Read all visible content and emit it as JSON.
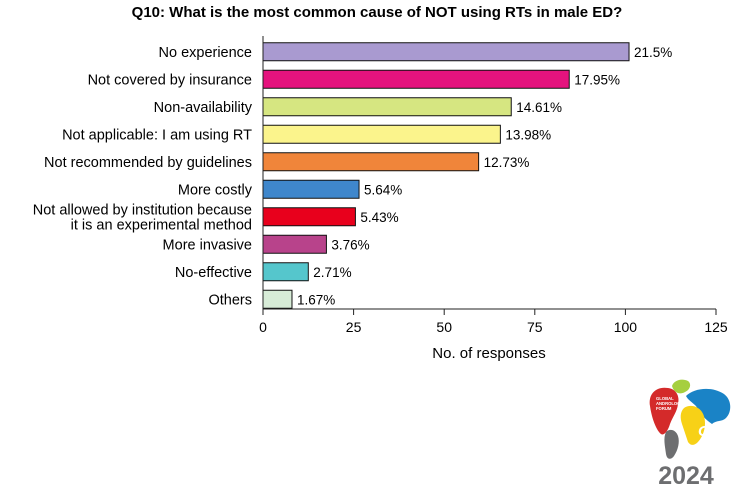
{
  "chart_data": {
    "type": "bar",
    "orientation": "horizontal",
    "title": "Q10: What is the most common cause of NOT using RTs in male ED?",
    "xlabel": "No. of responses",
    "ylabel": "",
    "xlim": [
      0,
      125
    ],
    "xticks": [
      "0",
      "25",
      "50",
      "75",
      "100",
      "125"
    ],
    "grid": false,
    "categories": [
      [
        "No experience"
      ],
      [
        "Not covered by insurance"
      ],
      [
        "Non-availability"
      ],
      [
        "Not applicable: I am using RT"
      ],
      [
        "Not recommended by guidelines"
      ],
      [
        "More costly"
      ],
      [
        "Not allowed by institution because",
        "it is an experimental method"
      ],
      [
        "More invasive"
      ],
      [
        "No-effective"
      ],
      [
        "Others"
      ]
    ],
    "values": [
      101,
      84.5,
      68.5,
      65.5,
      59.5,
      26.5,
      25.5,
      17.5,
      12.5,
      8
    ],
    "data_labels": [
      "21.5%",
      "17.95%",
      "14.61%",
      "13.98%",
      "12.73%",
      "5.64%",
      "5.43%",
      "3.76%",
      "2.71%",
      "1.67%"
    ],
    "colors": [
      "#a99ad0",
      "#e5137e",
      "#d6e681",
      "#fbf48c",
      "#f0853a",
      "#3f87cc",
      "#e8001c",
      "#b8438b",
      "#55c6cc",
      "#d7ecd7"
    ]
  },
  "logo": {
    "lines": [
      "GLOBAL",
      "ANDROLOGY",
      "FORUM"
    ],
    "mark": "GAF",
    "year": "2024",
    "colors": {
      "red": "#d42a2a",
      "green": "#a6cf3f",
      "yellow": "#f7d117",
      "blue": "#1a83c6",
      "gray": "#6d6e70",
      "text": "#6d6e70"
    }
  }
}
